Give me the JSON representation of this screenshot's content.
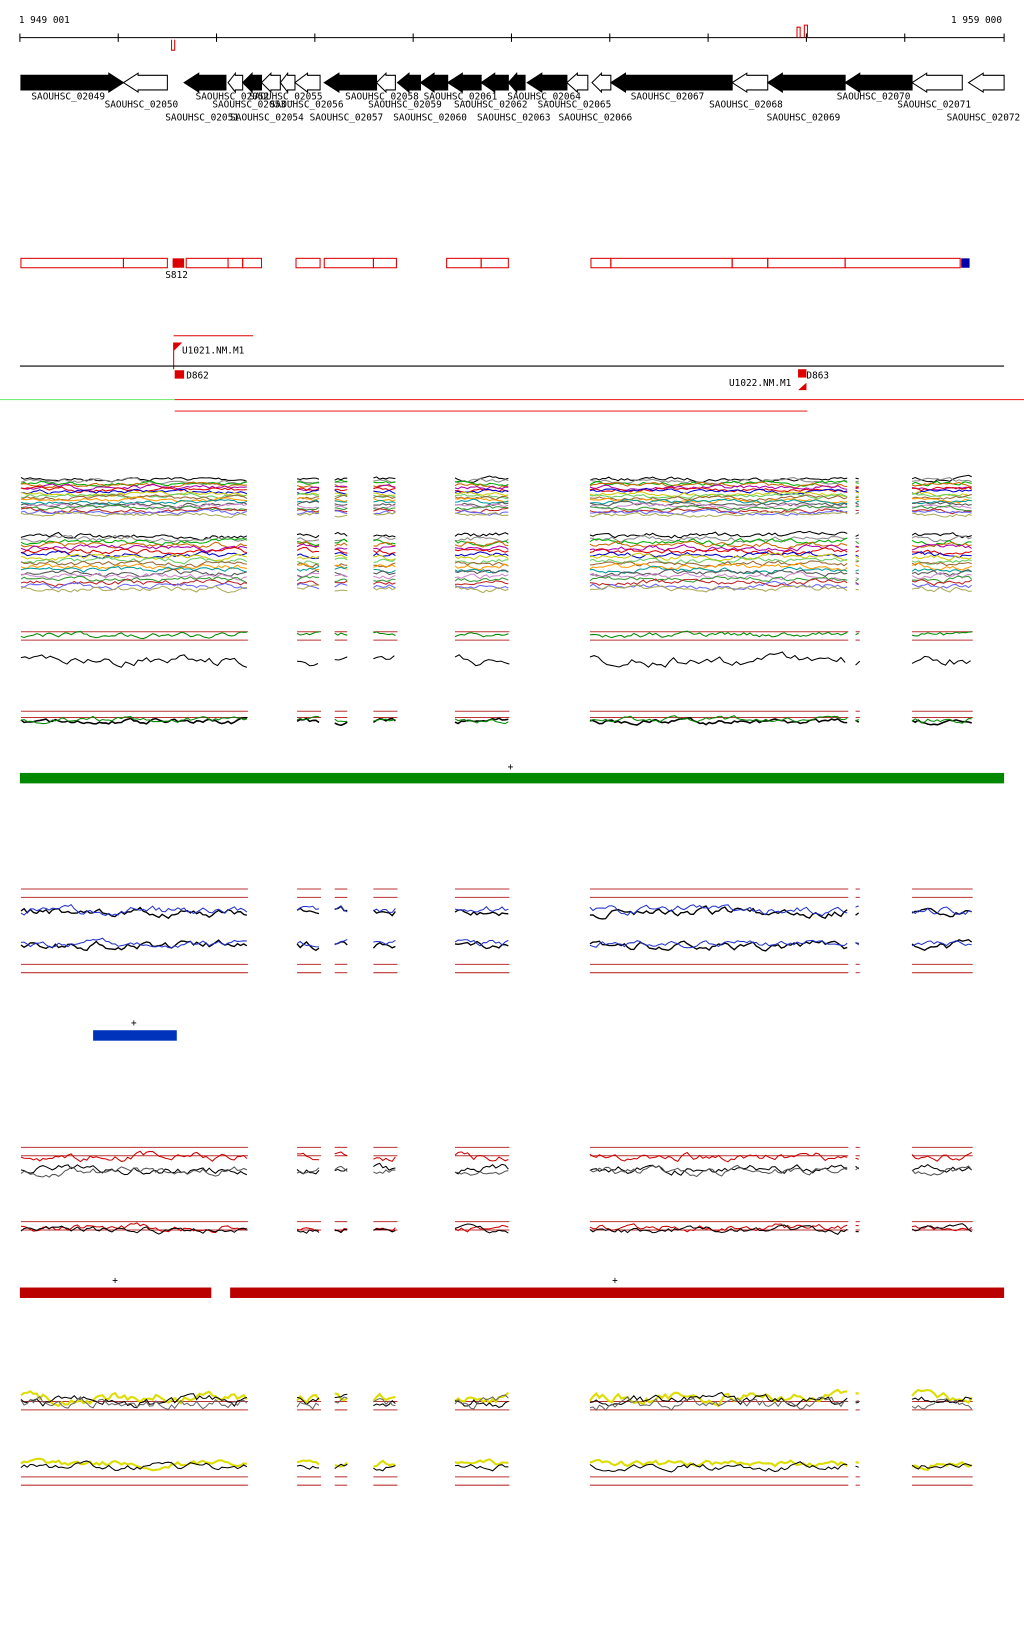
{
  "ruler": {
    "start": "1 949 001",
    "end": "1 959 000"
  },
  "genes": [
    "SAOUHSC_02049",
    "SAOUHSC_02050",
    "SAOUHSC_02051",
    "SAOUHSC_02052",
    "SAOUHSC_02053",
    "SAOUHSC_02054",
    "SAOUHSC_02055",
    "SAOUHSC_02056",
    "SAOUHSC_02057",
    "SAOUHSC_02058",
    "SAOUHSC_02059",
    "SAOUHSC_02060",
    "SAOUHSC_02061",
    "SAOUHSC_02062",
    "SAOUHSC_02063",
    "SAOUHSC_02064",
    "SAOUHSC_02065",
    "SAOUHSC_02066",
    "SAOUHSC_02067",
    "SAOUHSC_02068",
    "SAOUHSC_02069",
    "SAOUHSC_02070",
    "SAOUHSC_02071",
    "SAOUHSC_02072"
  ],
  "features": {
    "segment": "S812",
    "upstream_1": "U1021.NM.M1",
    "downstream_1": "D862",
    "upstream_2": "U1022.NM.M1",
    "downstream_2": "D863"
  },
  "strand_marks": [
    "+",
    "+",
    "+",
    "+"
  ]
}
